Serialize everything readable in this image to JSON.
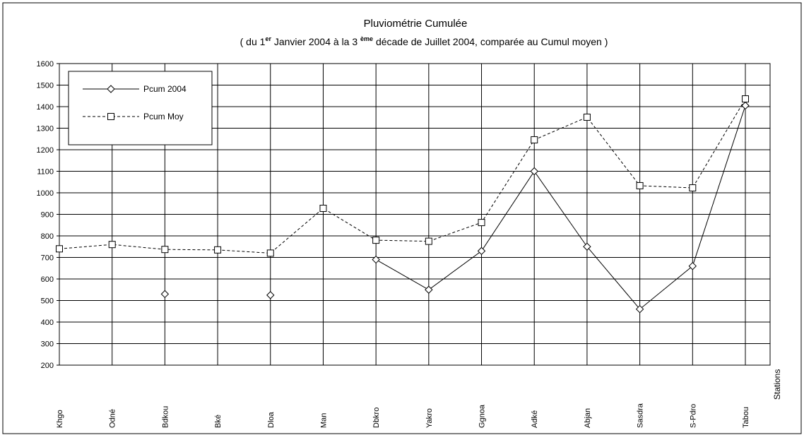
{
  "chart_data": {
    "type": "line",
    "title": "Pluviométrie Cumulée",
    "subtitle": [
      "( du 1",
      "er",
      " Janvier 2004  à  la 3 ",
      "ème",
      " décade  de  Juillet  2004, comparée au Cumul moyen  )"
    ],
    "x_label": "Stations",
    "categories": [
      "Khgo",
      "Odné",
      "Bdkou",
      "Bké",
      "Dloa",
      "Man",
      "Dbkro",
      "Yakro",
      "Ggnoa",
      "Adké",
      "Abjan",
      "Sasdra",
      "S-Pdro",
      "Tabou"
    ],
    "series": [
      {
        "name": "Pcum 2004",
        "color": "#000000",
        "dash": false,
        "marker": "diamond",
        "values": [
          null,
          null,
          530,
          null,
          525,
          null,
          690,
          550,
          730,
          1100,
          750,
          460,
          660,
          1405
        ]
      },
      {
        "name": "Pcum Moy",
        "color": "#000000",
        "dash": true,
        "marker": "square",
        "values": [
          740,
          760,
          737,
          735,
          720,
          928,
          780,
          775,
          862,
          1246,
          1351,
          1033,
          1023,
          1436
        ]
      }
    ],
    "ylim": [
      200,
      1600
    ],
    "yticks": [
      200,
      300,
      400,
      500,
      600,
      700,
      800,
      900,
      1000,
      1100,
      1200,
      1300,
      1400,
      1500,
      1600
    ],
    "grid": true,
    "legend": "upper left"
  }
}
